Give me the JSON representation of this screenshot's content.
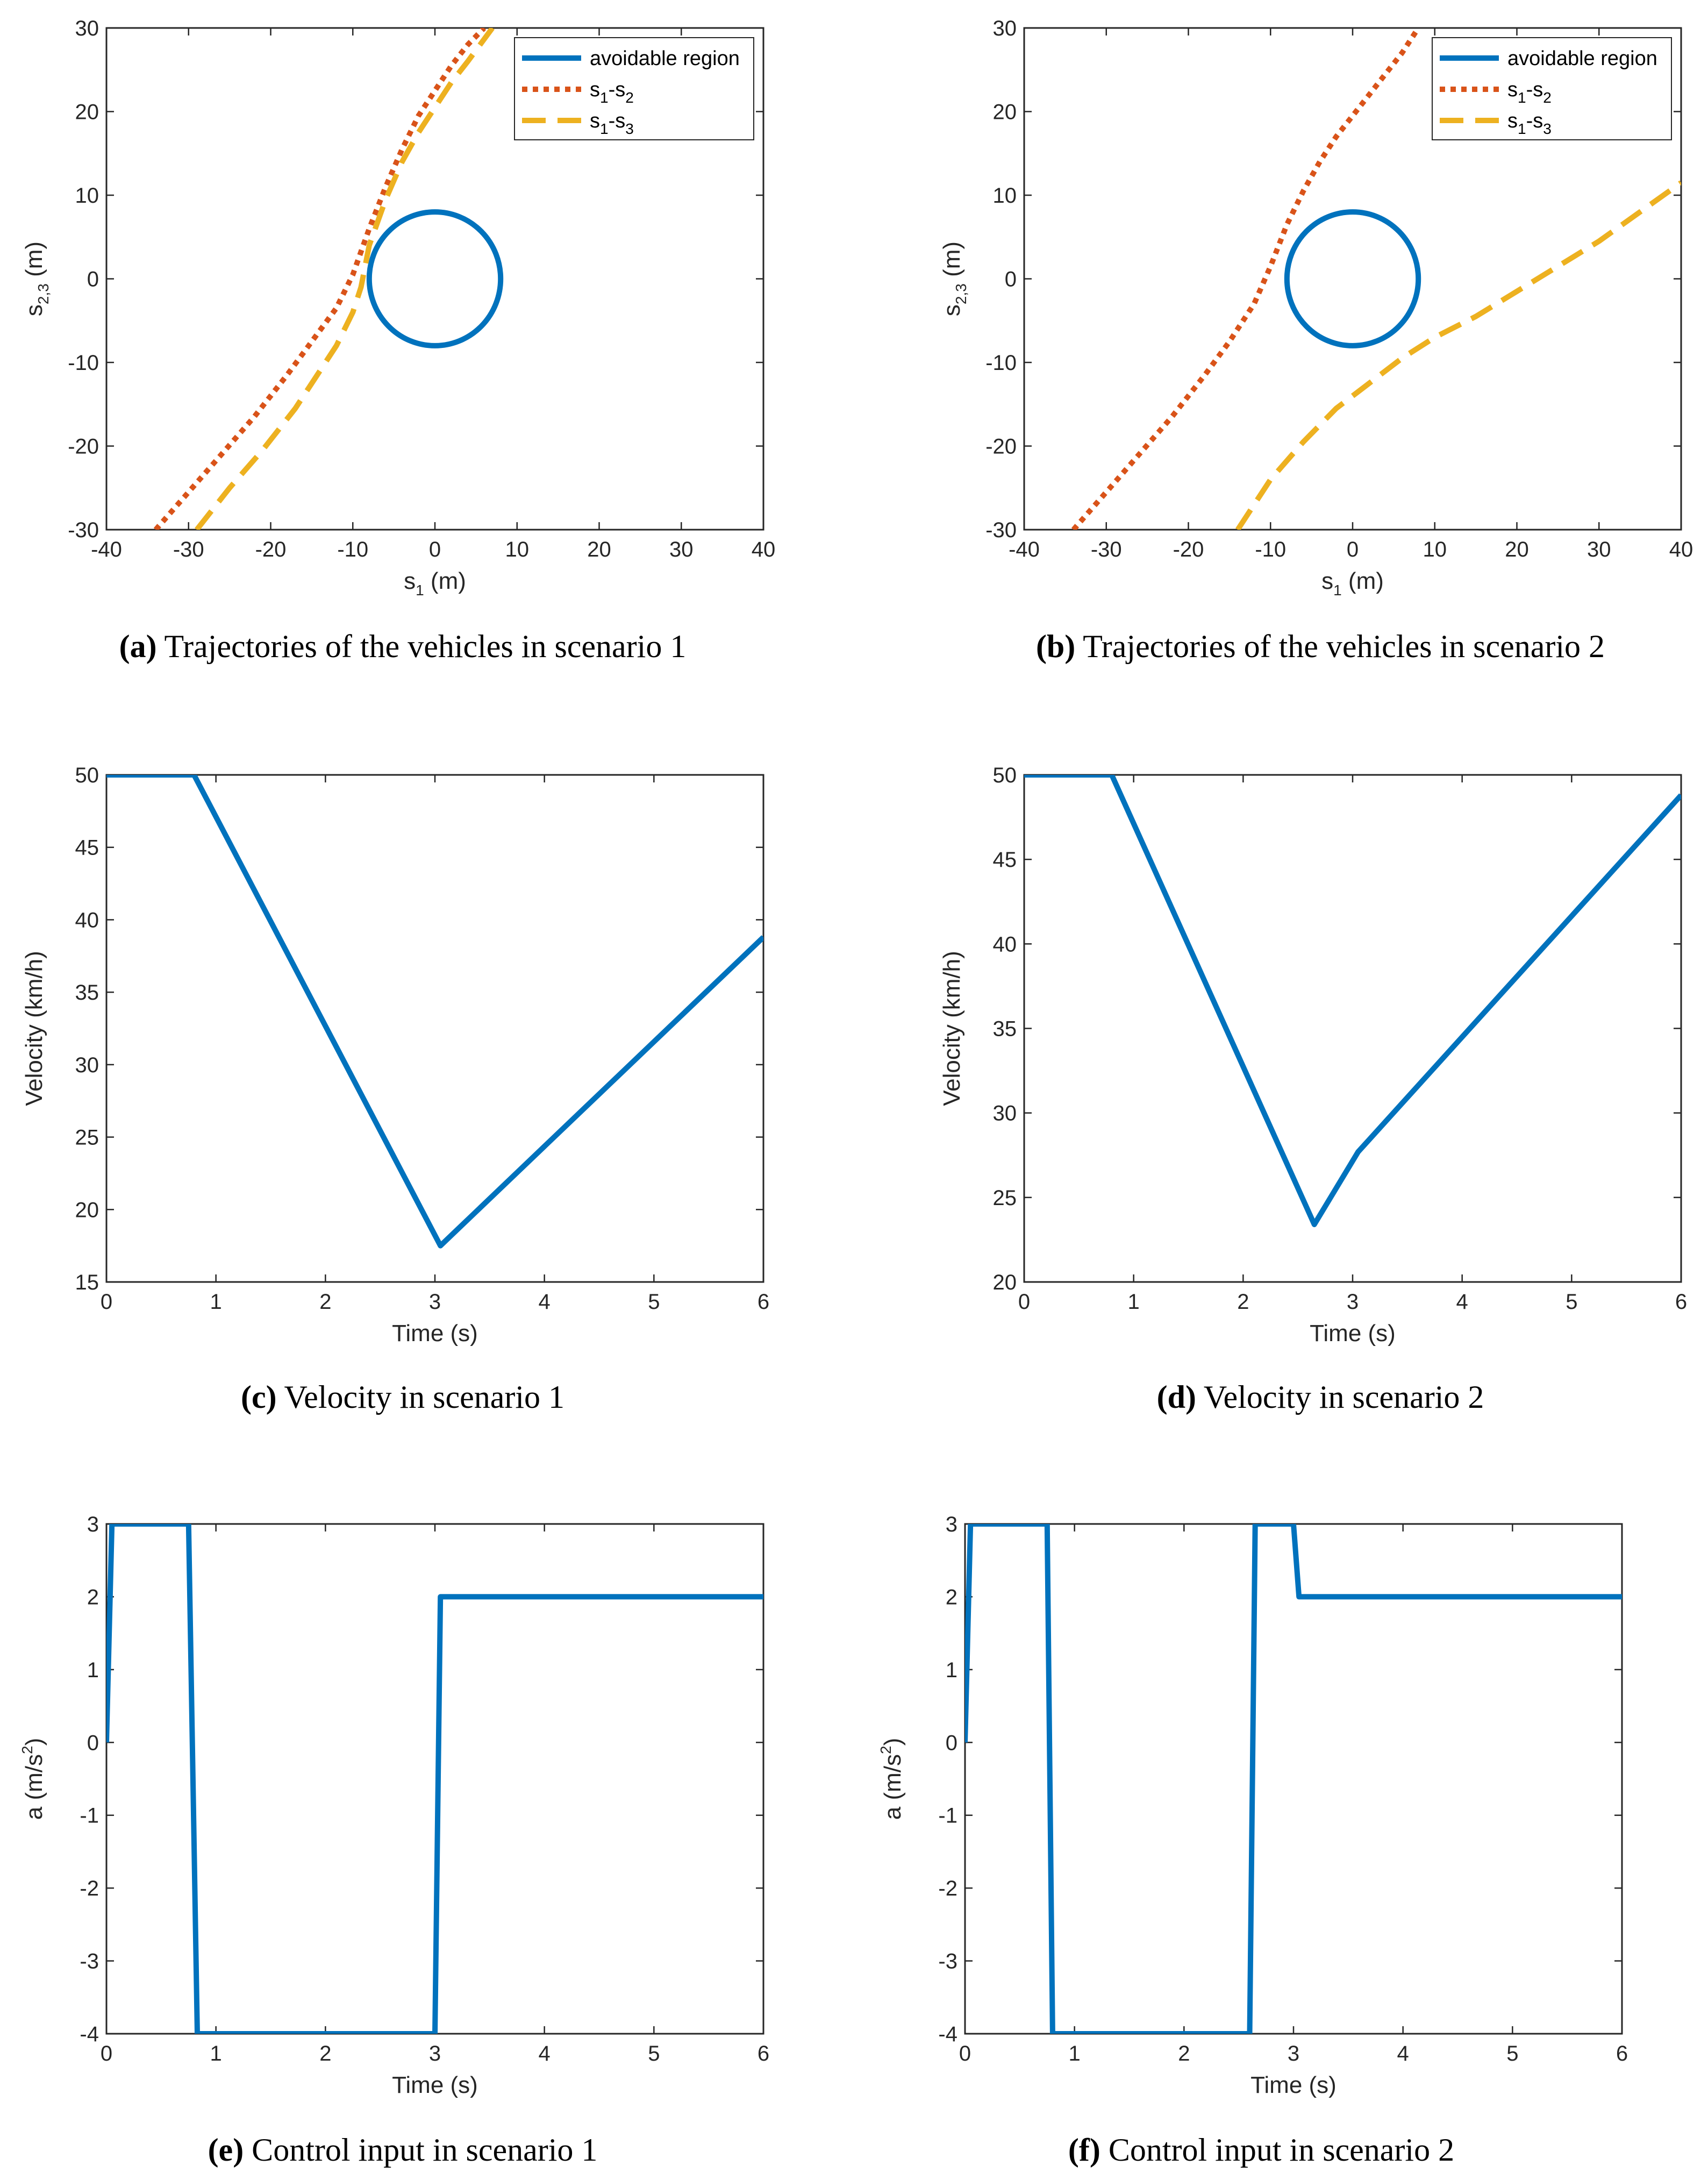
{
  "colors": {
    "blue": "#0072BD",
    "orange": "#D95319",
    "yellow": "#EDB120",
    "axis": "#262626"
  },
  "chart_data": [
    {
      "id": "a",
      "type": "line",
      "caption_label": "(a)",
      "caption_text": " Trajectories of the vehicles in scenario 1",
      "xlabel": "s_1 (m)",
      "ylabel": "s_2,3 (m)",
      "xlim": [
        -40,
        40
      ],
      "ylim": [
        -30,
        30
      ],
      "xticks": [
        -40,
        -30,
        -20,
        -10,
        0,
        10,
        20,
        30,
        40
      ],
      "yticks": [
        -30,
        -20,
        -10,
        0,
        10,
        20,
        30
      ],
      "xtick_labels": [
        "-40",
        "-30",
        "-20",
        "-10",
        "0",
        "10",
        "20",
        "30",
        "40"
      ],
      "ytick_labels": [
        "-30",
        "-20",
        "-10",
        "0",
        "10",
        "20",
        "30"
      ],
      "legend": {
        "location": "top-right",
        "entries": [
          "avoidable region",
          "s_1-s_2",
          "s_1-s_3"
        ]
      },
      "series": [
        {
          "name": "avoidable region",
          "style": "solid",
          "color": "#0072BD",
          "circle": {
            "cx": 0,
            "cy": 0,
            "r": 8
          }
        },
        {
          "name": "s_1-s_2",
          "style": "dotted",
          "color": "#D95319",
          "x": [
            -34,
            -30,
            -26,
            -22,
            -18,
            -15,
            -12,
            -10,
            -8,
            -6,
            -4,
            -2,
            0,
            2,
            4,
            6
          ],
          "y": [
            -30,
            -25.5,
            -21,
            -16.5,
            -11.5,
            -7.5,
            -3.5,
            0.5,
            6,
            11,
            15.5,
            19.5,
            22.5,
            25.5,
            28,
            30
          ]
        },
        {
          "name": "s_1-s_3",
          "style": "dashed",
          "color": "#EDB120",
          "x": [
            -29,
            -25,
            -21,
            -17,
            -14,
            -12,
            -10,
            -9,
            -8,
            -6,
            -4,
            -2,
            0,
            2,
            4,
            7
          ],
          "y": [
            -30,
            -25,
            -20.5,
            -15.5,
            -11,
            -8,
            -4,
            -1,
            4,
            9.5,
            14,
            17.5,
            20.5,
            23.5,
            26,
            30
          ]
        }
      ]
    },
    {
      "id": "b",
      "type": "line",
      "caption_label": "(b)",
      "caption_text": " Trajectories of the vehicles in scenario 2",
      "xlabel": "s_1 (m)",
      "ylabel": "s_2,3 (m)",
      "xlim": [
        -40,
        40
      ],
      "ylim": [
        -30,
        30
      ],
      "xticks": [
        -40,
        -30,
        -20,
        -10,
        0,
        10,
        20,
        30,
        40
      ],
      "yticks": [
        -30,
        -20,
        -10,
        0,
        10,
        20,
        30
      ],
      "xtick_labels": [
        "-40",
        "-30",
        "-20",
        "-10",
        "0",
        "10",
        "20",
        "30",
        "40"
      ],
      "ytick_labels": [
        "-30",
        "-20",
        "-10",
        "0",
        "10",
        "20",
        "30"
      ],
      "legend": {
        "location": "top-right",
        "entries": [
          "avoidable region",
          "s_1-s_2",
          "s_1-s_3"
        ]
      },
      "series": [
        {
          "name": "avoidable region",
          "style": "solid",
          "color": "#0072BD",
          "circle": {
            "cx": 0,
            "cy": 0,
            "r": 8
          }
        },
        {
          "name": "s_1-s_2",
          "style": "dotted",
          "color": "#D95319",
          "x": [
            -34,
            -30,
            -26,
            -22,
            -18,
            -15,
            -12,
            -10,
            -8,
            -6,
            -4,
            -2,
            0,
            2,
            4,
            6,
            8
          ],
          "y": [
            -30,
            -25.5,
            -21,
            -16.5,
            -11.5,
            -7.5,
            -3,
            1.5,
            6.5,
            10.5,
            14,
            17,
            19.5,
            22,
            24.5,
            27,
            30
          ]
        },
        {
          "name": "s_1-s_3",
          "style": "dashed",
          "color": "#EDB120",
          "x": [
            -14,
            -10,
            -6,
            -2,
            2,
            6,
            10,
            15,
            20,
            25,
            30,
            35,
            40
          ],
          "y": [
            -30,
            -24,
            -19.5,
            -15.5,
            -12.5,
            -9.5,
            -7,
            -4.5,
            -1.5,
            1.5,
            4.5,
            8,
            11.5
          ]
        }
      ]
    },
    {
      "id": "c",
      "type": "line",
      "caption_label": "(c)",
      "caption_text": " Velocity in scenario 1",
      "xlabel": "Time (s)",
      "ylabel": "Velocity (km/h)",
      "xlim": [
        0,
        6
      ],
      "ylim": [
        15,
        50
      ],
      "xticks": [
        0,
        1,
        2,
        3,
        4,
        5,
        6
      ],
      "yticks": [
        15,
        20,
        25,
        30,
        35,
        40,
        45,
        50
      ],
      "xtick_labels": [
        "0",
        "1",
        "2",
        "3",
        "4",
        "5",
        "6"
      ],
      "ytick_labels": [
        "15",
        "20",
        "25",
        "30",
        "35",
        "40",
        "45",
        "50"
      ],
      "series": [
        {
          "name": "velocity",
          "style": "solid",
          "color": "#0072BD",
          "x": [
            0,
            0.8,
            3.05,
            6
          ],
          "y": [
            50,
            50,
            17.5,
            38.8
          ]
        }
      ]
    },
    {
      "id": "d",
      "type": "line",
      "caption_label": "(d)",
      "caption_text": " Velocity in scenario 2",
      "xlabel": "Time (s)",
      "ylabel": "Velocity (km/h)",
      "xlim": [
        0,
        6
      ],
      "ylim": [
        20,
        50
      ],
      "xticks": [
        0,
        1,
        2,
        3,
        4,
        5,
        6
      ],
      "yticks": [
        20,
        25,
        30,
        35,
        40,
        45,
        50
      ],
      "xtick_labels": [
        "0",
        "1",
        "2",
        "3",
        "4",
        "5",
        "6"
      ],
      "ytick_labels": [
        "20",
        "25",
        "30",
        "35",
        "40",
        "45",
        "50"
      ],
      "series": [
        {
          "name": "velocity",
          "style": "solid",
          "color": "#0072BD",
          "x": [
            0,
            0.8,
            2.65,
            3.05,
            6
          ],
          "y": [
            50,
            50,
            23.4,
            27.7,
            48.8
          ]
        }
      ]
    },
    {
      "id": "e",
      "type": "line",
      "caption_label": "(e)",
      "caption_text": " Control input in scenario 1",
      "xlabel": "Time (s)",
      "ylabel": "a (m/s^2)",
      "xlim": [
        0,
        6
      ],
      "ylim": [
        -4,
        3
      ],
      "xticks": [
        0,
        1,
        2,
        3,
        4,
        5,
        6
      ],
      "yticks": [
        -4,
        -3,
        -2,
        -1,
        0,
        1,
        2,
        3
      ],
      "xtick_labels": [
        "0",
        "1",
        "2",
        "3",
        "4",
        "5",
        "6"
      ],
      "ytick_labels": [
        "-4",
        "-3",
        "-2",
        "-1",
        "0",
        "1",
        "2",
        "3"
      ],
      "series": [
        {
          "name": "control input",
          "style": "solid",
          "color": "#0072BD",
          "x": [
            0,
            0.05,
            0.75,
            0.83,
            3.0,
            3.05,
            6
          ],
          "y": [
            0,
            3,
            3,
            -4,
            -4,
            2,
            2
          ]
        }
      ]
    },
    {
      "id": "f",
      "type": "line",
      "caption_label": "(f)",
      "caption_text": " Control input in scenario 2",
      "xlabel": "Time (s)",
      "ylabel": "a (m/s^2)",
      "xlim": [
        0,
        6
      ],
      "ylim": [
        -4,
        3
      ],
      "xticks": [
        0,
        1,
        2,
        3,
        4,
        5,
        6
      ],
      "yticks": [
        -4,
        -3,
        -2,
        -1,
        0,
        1,
        2,
        3
      ],
      "xtick_labels": [
        "0",
        "1",
        "2",
        "3",
        "4",
        "5",
        "6"
      ],
      "ytick_labels": [
        "-4",
        "-3",
        "-2",
        "-1",
        "0",
        "1",
        "2",
        "3"
      ],
      "series": [
        {
          "name": "control input",
          "style": "solid",
          "color": "#0072BD",
          "x": [
            0,
            0.05,
            0.75,
            0.8,
            2.6,
            2.65,
            3.0,
            3.05,
            6
          ],
          "y": [
            0,
            3,
            3,
            -4,
            -4,
            3,
            3,
            2,
            2
          ]
        }
      ]
    }
  ]
}
